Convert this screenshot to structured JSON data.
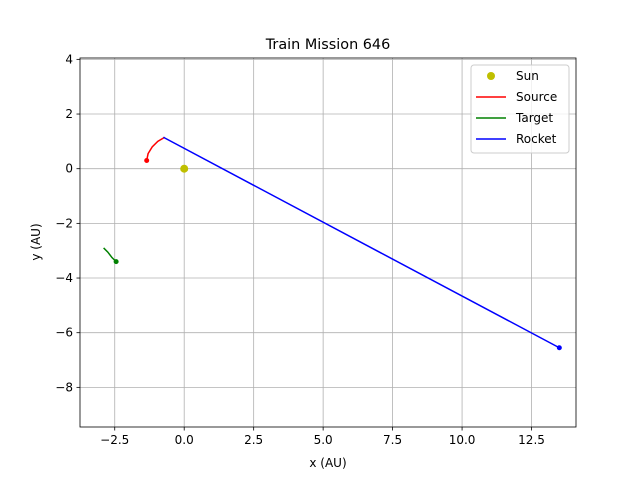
{
  "chart_data": {
    "type": "line",
    "title": "Train Mission 646",
    "xlabel": "x (AU)",
    "ylabel": "y (AU)",
    "xlim": [
      -3.75,
      14.1
    ],
    "ylim": [
      -9.45,
      4.05
    ],
    "xticks": [
      -2.5,
      0.0,
      2.5,
      5.0,
      7.5,
      10.0,
      12.5
    ],
    "xtick_labels": [
      "−2.5",
      "0.0",
      "2.5",
      "5.0",
      "7.5",
      "10.0",
      "12.5"
    ],
    "yticks": [
      -8,
      -6,
      -4,
      -2,
      0,
      2,
      4
    ],
    "ytick_labels": [
      "−8",
      "−6",
      "−4",
      "−2",
      "0",
      "2",
      "4"
    ],
    "grid": true,
    "legend_position": "top-right",
    "series": [
      {
        "name": "Sun",
        "kind": "marker",
        "color": "#bfbf00",
        "points": [
          [
            0.0,
            0.0
          ]
        ]
      },
      {
        "name": "Source",
        "kind": "line",
        "color": "#ff0000",
        "points": [
          [
            -1.35,
            0.3
          ],
          [
            -1.3,
            0.55
          ],
          [
            -1.15,
            0.8
          ],
          [
            -0.95,
            1.0
          ],
          [
            -0.7,
            1.15
          ]
        ],
        "end_marker": [
          -1.35,
          0.3
        ]
      },
      {
        "name": "Target",
        "kind": "line",
        "color": "#008000",
        "points": [
          [
            -2.9,
            -2.9
          ],
          [
            -2.75,
            -3.05
          ],
          [
            -2.6,
            -3.25
          ],
          [
            -2.45,
            -3.4
          ]
        ],
        "end_marker": [
          -2.45,
          -3.4
        ]
      },
      {
        "name": "Rocket",
        "kind": "line",
        "color": "#0000ff",
        "points": [
          [
            -0.75,
            1.15
          ],
          [
            13.5,
            -6.55
          ]
        ],
        "end_marker": [
          13.5,
          -6.55
        ]
      }
    ]
  }
}
